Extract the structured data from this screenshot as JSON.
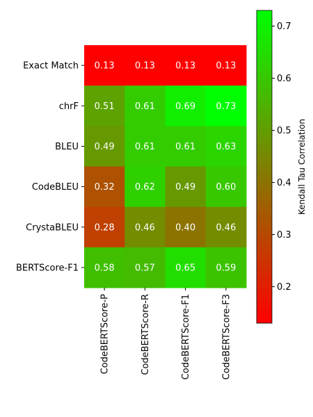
{
  "chart_data": {
    "type": "heatmap",
    "rows": [
      "Exact Match",
      "chrF",
      "BLEU",
      "CodeBLEU",
      "CrystaBLEU",
      "BERTScore-F1"
    ],
    "columns": [
      "CodeBERTScore-P",
      "CodeBERTScore-R",
      "CodeBERTScore-F1",
      "CodeBERTScore-F3"
    ],
    "values": [
      [
        0.13,
        0.13,
        0.13,
        0.13
      ],
      [
        0.51,
        0.61,
        0.69,
        0.73
      ],
      [
        0.49,
        0.61,
        0.61,
        0.63
      ],
      [
        0.32,
        0.62,
        0.49,
        0.6
      ],
      [
        0.28,
        0.46,
        0.4,
        0.46
      ],
      [
        0.58,
        0.57,
        0.65,
        0.59
      ]
    ],
    "value_labels": [
      [
        "0.13",
        "0.13",
        "0.13",
        "0.13"
      ],
      [
        "0.51",
        "0.61",
        "0.69",
        "0.73"
      ],
      [
        "0.49",
        "0.61",
        "0.61",
        "0.63"
      ],
      [
        "0.32",
        "0.62",
        "0.49",
        "0.60"
      ],
      [
        "0.28",
        "0.46",
        "0.40",
        "0.46"
      ],
      [
        "0.58",
        "0.57",
        "0.65",
        "0.59"
      ]
    ],
    "colorbar": {
      "label": "Kendall Tau Correlation",
      "range": [
        0.13,
        0.73
      ],
      "ticks": [
        "0.2",
        "0.3",
        "0.4",
        "0.5",
        "0.6",
        "0.7"
      ],
      "colors": [
        "#ff0000",
        "#00ff00"
      ]
    }
  }
}
